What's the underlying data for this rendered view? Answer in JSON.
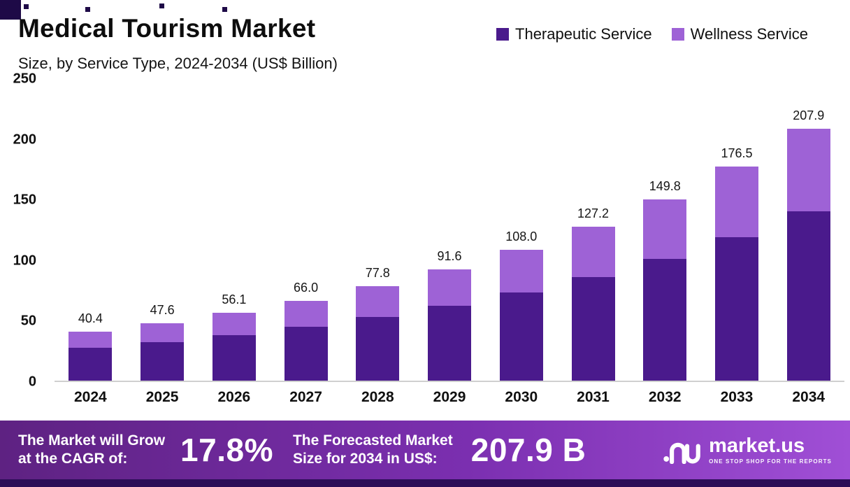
{
  "chart_data": {
    "type": "bar",
    "stacked": true,
    "title": "Medical Tourism Market",
    "subtitle": "Size, by Service Type, 2024-2034 (US$ Billion)",
    "xlabel": "",
    "ylabel": "",
    "categories": [
      "2024",
      "2025",
      "2026",
      "2027",
      "2028",
      "2029",
      "2030",
      "2031",
      "2032",
      "2033",
      "2034"
    ],
    "series": [
      {
        "name": "Therapeutic Service",
        "color": "#4a1a8c",
        "values": [
          27.2,
          32.0,
          37.8,
          44.4,
          52.3,
          61.6,
          72.5,
          85.4,
          100.6,
          118.5,
          139.6
        ]
      },
      {
        "name": "Wellness Service",
        "color": "#9e62d6",
        "values": [
          13.2,
          15.6,
          18.3,
          21.6,
          25.5,
          30.0,
          35.5,
          41.8,
          49.2,
          58.0,
          68.3
        ]
      }
    ],
    "totals": [
      40.4,
      47.6,
      56.1,
      66.0,
      77.8,
      91.6,
      108.0,
      127.2,
      149.8,
      176.5,
      207.9
    ],
    "total_labels": [
      "40.4",
      "47.6",
      "56.1",
      "66.0",
      "77.8",
      "91.6",
      "108.0",
      "127.2",
      "149.8",
      "176.5",
      "207.9"
    ],
    "ylim": [
      0,
      250
    ],
    "yticks": [
      0,
      50,
      100,
      150,
      200,
      250
    ],
    "grid": false,
    "legend_position": "top-right"
  },
  "footer": {
    "cagr_label_line1": "The Market will Grow",
    "cagr_label_line2": "at the CAGR of:",
    "cagr_value": "17.8%",
    "forecast_label_line1": "The Forecasted Market",
    "forecast_label_line2": "Size for 2034 in US$:",
    "forecast_value": "207.9 B",
    "brand": "market.us",
    "brand_tagline": "ONE STOP SHOP FOR THE REPORTS"
  },
  "colors": {
    "therapeutic": "#4a1a8c",
    "wellness": "#9e62d6",
    "banner_gradient_left": "#5e2282",
    "banner_gradient_right": "#a04fd6",
    "bottom_strip": "#2c0e57",
    "axis_text": "#101010"
  }
}
